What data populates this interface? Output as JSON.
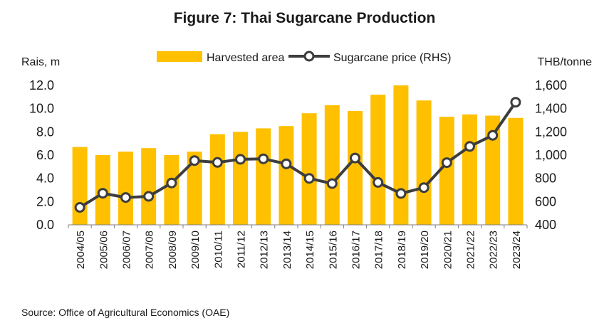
{
  "title": "Figure 7: Thai Sugarcane Production",
  "source": "Source: Office of Agricultural Economics (OAE)",
  "chart_data": {
    "type": "bar+line",
    "title": "Figure 7: Thai Sugarcane Production",
    "categories": [
      "2004/05",
      "2005/06",
      "2006/07",
      "2007/08",
      "2008/09",
      "2009/10",
      "2010/11",
      "2011/12",
      "2012/13",
      "2013/14",
      "2014/15",
      "2015/16",
      "2016/17",
      "2017/18",
      "2018/19",
      "2019/20",
      "2020/21",
      "2021/22",
      "2022/23",
      "2023/24"
    ],
    "series": [
      {
        "name": "Harvested area",
        "type": "bar",
        "axis": "left",
        "color": "#FFC000",
        "values": [
          6.7,
          6.0,
          6.3,
          6.6,
          6.0,
          6.3,
          7.8,
          8.0,
          8.3,
          8.5,
          9.6,
          10.3,
          9.8,
          11.2,
          12.0,
          10.7,
          9.3,
          9.5,
          9.4,
          9.2
        ]
      },
      {
        "name": "Sugarcane price (RHS)",
        "type": "line",
        "axis": "right",
        "color": "#3d3d3d",
        "values": [
          550,
          672,
          635,
          645,
          760,
          953,
          937,
          964,
          968,
          925,
          800,
          755,
          975,
          765,
          670,
          720,
          935,
          1075,
          1170,
          1455
        ]
      }
    ],
    "ylabel_left": "Rais, m",
    "ylabel_right": "THB/tonne",
    "ylim_left": [
      0,
      12
    ],
    "ylim_right": [
      400,
      1600
    ],
    "yticks_left": [
      "0.0",
      "2.0",
      "4.0",
      "6.0",
      "8.0",
      "10.0",
      "12.0"
    ],
    "yticks_right": [
      "400",
      "600",
      "800",
      "1,000",
      "1,200",
      "1,400",
      "1,600"
    ],
    "grid": false,
    "legend_position": "top"
  }
}
